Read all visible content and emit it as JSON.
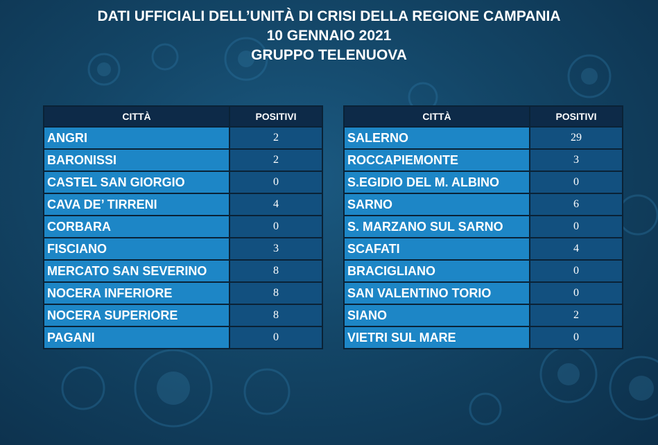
{
  "header": {
    "line1": "DATI UFFICIALI DELL’UNITÀ DI CRISI DELLA REGIONE CAMPANIA",
    "line2": "10 GENNAIO 2021",
    "line3": "GRUPPO TELENUOVA"
  },
  "tables": [
    {
      "col_city": "CITTÀ",
      "col_positive": "POSITIVI",
      "rows": [
        {
          "city": "ANGRI",
          "positive": "2"
        },
        {
          "city": "BARONISSI",
          "positive": "2"
        },
        {
          "city": "CASTEL SAN GIORGIO",
          "positive": "0"
        },
        {
          "city": "CAVA DE’ TIRRENI",
          "positive": "4"
        },
        {
          "city": "CORBARA",
          "positive": "0"
        },
        {
          "city": "FISCIANO",
          "positive": "3"
        },
        {
          "city": "MERCATO SAN SEVERINO",
          "positive": "8"
        },
        {
          "city": "NOCERA INFERIORE",
          "positive": "8"
        },
        {
          "city": "NOCERA SUPERIORE",
          "positive": "8"
        },
        {
          "city": "PAGANI",
          "positive": "0"
        }
      ]
    },
    {
      "col_city": "CITTÀ",
      "col_positive": "POSITIVI",
      "rows": [
        {
          "city": "SALERNO",
          "positive": "29"
        },
        {
          "city": "ROCCAPIEMONTE",
          "positive": "3"
        },
        {
          "city": "S.EGIDIO DEL M. ALBINO",
          "positive": "0"
        },
        {
          "city": "SARNO",
          "positive": "6"
        },
        {
          "city": "S. MARZANO SUL SARNO",
          "positive": "0"
        },
        {
          "city": "SCAFATI",
          "positive": "4"
        },
        {
          "city": "BRACIGLIANO",
          "positive": "0"
        },
        {
          "city": "SAN VALENTINO TORIO",
          "positive": "0"
        },
        {
          "city": "SIANO",
          "positive": "2"
        },
        {
          "city": "VIETRI SUL MARE",
          "positive": "0"
        }
      ]
    }
  ],
  "colors": {
    "header_cell": "#0d2a48",
    "city_cell": "#1d86c6",
    "value_cell": "#12507f",
    "background": "#134566"
  }
}
